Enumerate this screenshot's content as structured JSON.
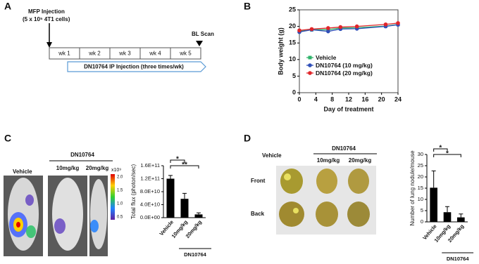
{
  "panels": {
    "a": {
      "letter": "A",
      "injection": "MFP Injection",
      "cells": "(5 x 10⁵ 4T1 cells)",
      "scan": "BL Scan",
      "weeks": [
        "wk 1",
        "wk 2",
        "wk 3",
        "wk 4",
        "wk 5"
      ],
      "treatment": "DN10764  IP Injection  (three times/wk)"
    },
    "b": {
      "letter": "B"
    },
    "c": {
      "letter": "C",
      "vehicle": "Vehicle",
      "drug": "DN10764",
      "dose1": "10mg/kg",
      "dose2": "20mg/kg",
      "scale_unit": "x10⁹",
      "scale_ticks": [
        "2.0",
        "1.5",
        "1.0",
        "0.5"
      ]
    },
    "d": {
      "letter": "D",
      "vehicle": "Vehicle",
      "drug": "DN10764",
      "dose1": "10mg/kg",
      "dose2": "20mg/kg",
      "front": "Front",
      "back": "Back"
    }
  },
  "chart_data": [
    {
      "type": "line",
      "xlabel": "Day of treatment",
      "ylabel": "Body weight (g)",
      "x": [
        0,
        3,
        7,
        10,
        14,
        21,
        24
      ],
      "xlim": [
        0,
        24
      ],
      "xticks": [
        0,
        4,
        8,
        12,
        16,
        20,
        24
      ],
      "ylim": [
        0,
        25
      ],
      "yticks": [
        0,
        5,
        10,
        15,
        20,
        25
      ],
      "legend": "lower left",
      "series": [
        {
          "name": "Vehicle",
          "color": "#2fb36a",
          "marker": "square",
          "values": [
            18.5,
            19,
            19,
            19.5,
            19.6,
            20.1,
            20.6
          ]
        },
        {
          "name": "DN10764 (10 mg/kg)",
          "color": "#2f4fb8",
          "marker": "circle",
          "values": [
            18.3,
            19,
            18.5,
            19.2,
            19.3,
            20,
            20.5
          ]
        },
        {
          "name": "DN10764 (20 mg/kg)",
          "color": "#e0262a",
          "marker": "circle",
          "values": [
            18.8,
            19.2,
            19.5,
            19.8,
            20,
            20.6,
            21
          ]
        }
      ]
    },
    {
      "type": "bar",
      "ylabel": "Total flux (photon/sec)",
      "color": "#000000",
      "categories": [
        "Vehicle",
        "10mg/kg",
        "20mg/kg"
      ],
      "values": [
        120000000000,
        58000000000,
        10000000000
      ],
      "errors": [
        10000000000,
        17000000000,
        5000000000
      ],
      "ylim": [
        0,
        160000000000
      ],
      "yticks": [
        {
          "value": 0,
          "label": "0.0E+00"
        },
        {
          "value": 40000000000,
          "label": "4.0E+10"
        },
        {
          "value": 80000000000,
          "label": "8.0E+10"
        },
        {
          "value": 120000000000,
          "label": "1.2E+11"
        },
        {
          "value": 160000000000,
          "label": "1.6E+11"
        }
      ],
      "significance": [
        "*",
        "**"
      ],
      "group": "DN10764"
    },
    {
      "type": "bar",
      "ylabel": "Number of lung nodule/mouse",
      "color": "#000000",
      "categories": [
        "Vehicle",
        "10mg/kg",
        "20mg/kg"
      ],
      "values": [
        15.2,
        4.3,
        2
      ],
      "errors": [
        7.5,
        2.5,
        1.5
      ],
      "ylim": [
        0,
        30
      ],
      "yticks": [
        0,
        5,
        10,
        15,
        20,
        25,
        30
      ],
      "significance": [
        "*",
        "*"
      ],
      "group": "DN10764"
    }
  ]
}
